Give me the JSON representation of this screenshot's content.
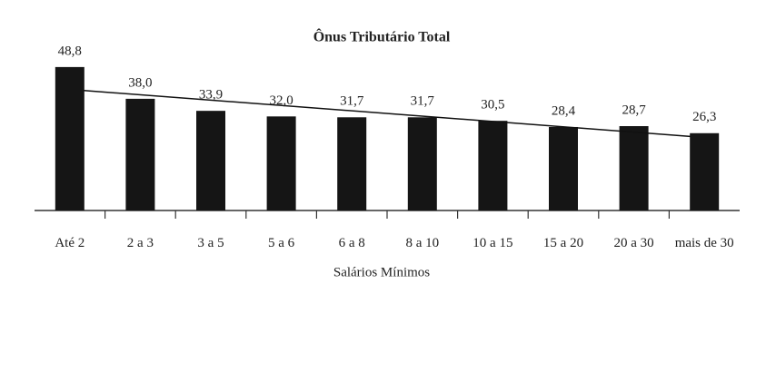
{
  "chart_data": {
    "type": "bar",
    "title": "Ônus Tributário Total",
    "x_label": "Salários Mínimos",
    "categories": [
      "Até 2",
      "2 a 3",
      "3 a 5",
      "5 a 6",
      "6 a 8",
      "8 a 10",
      "10 a 15",
      "15 a 20",
      "20 a 30",
      "mais de 30"
    ],
    "values": [
      48.8,
      38.0,
      33.9,
      32.0,
      31.7,
      31.7,
      30.5,
      28.4,
      28.7,
      26.3
    ],
    "value_labels": [
      "48,8",
      "38,0",
      "33,9",
      "32,0",
      "31,7",
      "31,7",
      "30,5",
      "28,4",
      "28,7",
      "26,3"
    ],
    "color": "#151515",
    "trendline": true
  }
}
